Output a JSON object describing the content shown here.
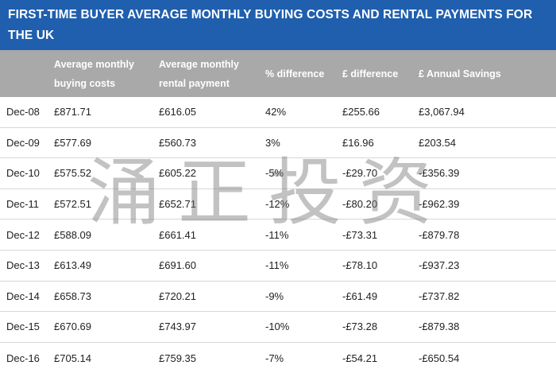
{
  "title": "FIRST-TIME BUYER AVERAGE MONTHLY BUYING COSTS AND RENTAL PAYMENTS FOR THE UK",
  "headers": {
    "date": "",
    "buying": "Average monthly buying costs",
    "rental": "Average monthly rental payment",
    "pct": "% difference",
    "diff": "£ difference",
    "annual": "£ Annual Savings"
  },
  "rows": [
    {
      "date": "Dec-08",
      "buying": "£871.71",
      "rental": "£616.05",
      "pct": "42%",
      "diff": "£255.66",
      "annual": "£3,067.94"
    },
    {
      "date": "Dec-09",
      "buying": "£577.69",
      "rental": "£560.73",
      "pct": "3%",
      "diff": "£16.96",
      "annual": "£203.54"
    },
    {
      "date": "Dec-10",
      "buying": "£575.52",
      "rental": "£605.22",
      "pct": "-5%",
      "diff": "-£29.70",
      "annual": "-£356.39"
    },
    {
      "date": "Dec-11",
      "buying": "£572.51",
      "rental": "£652.71",
      "pct": "-12%",
      "diff": "-£80.20",
      "annual": "-£962.39"
    },
    {
      "date": "Dec-12",
      "buying": "£588.09",
      "rental": "£661.41",
      "pct": "-11%",
      "diff": "-£73.31",
      "annual": "-£879.78"
    },
    {
      "date": "Dec-13",
      "buying": "£613.49",
      "rental": "£691.60",
      "pct": "-11%",
      "diff": "-£78.10",
      "annual": "-£937.23"
    },
    {
      "date": "Dec-14",
      "buying": "£658.73",
      "rental": "£720.21",
      "pct": "-9%",
      "diff": "-£61.49",
      "annual": "-£737.82"
    },
    {
      "date": "Dec-15",
      "buying": "£670.69",
      "rental": "£743.97",
      "pct": "-10%",
      "diff": "-£73.28",
      "annual": "-£879.38"
    },
    {
      "date": "Dec-16",
      "buying": "£705.14",
      "rental": "£759.35",
      "pct": "-7%",
      "diff": "-£54.21",
      "annual": "-£650.54"
    }
  ],
  "watermark": "涌正投资",
  "colors": {
    "title_bg": "#1f5fae",
    "header_bg": "#a9a9a9",
    "row_border": "#d7d7d7"
  }
}
